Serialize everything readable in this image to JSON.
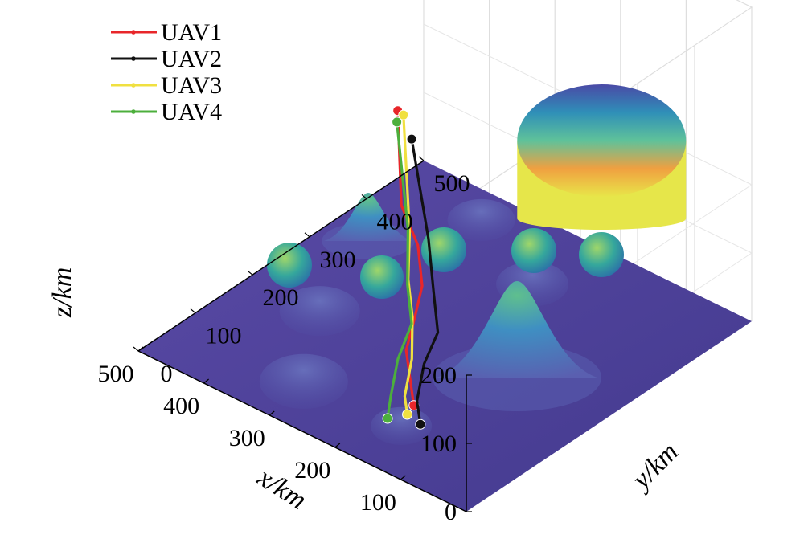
{
  "chart_data": {
    "type": "line",
    "projection": "3d",
    "title": "",
    "xlabel": "x/km",
    "ylabel": "y/km",
    "zlabel": "z/km",
    "xlim": [
      0,
      500
    ],
    "ylim": [
      0,
      500
    ],
    "zlim": [
      0,
      200
    ],
    "grid": true,
    "legend_position": "top-left",
    "x_ticks": [
      "100",
      "200",
      "300",
      "400",
      "500"
    ],
    "y_ticks": [
      "0",
      "100",
      "200",
      "300",
      "400",
      "500"
    ],
    "z_ticks": [
      "0",
      "100",
      "200"
    ],
    "series": [
      {
        "name": "UAV1",
        "color": "#e8262a",
        "points": [
          [
            80,
            0,
            118
          ],
          [
            110,
            30,
            114
          ],
          [
            170,
            90,
            106
          ],
          [
            210,
            150,
            98
          ],
          [
            250,
            210,
            96
          ],
          [
            300,
            260,
            104
          ],
          [
            360,
            300,
            112
          ],
          [
            470,
            420,
            132
          ]
        ]
      },
      {
        "name": "UAV2",
        "color": "#111111",
        "points": [
          [
            70,
            0,
            95
          ],
          [
            110,
            40,
            88
          ],
          [
            160,
            110,
            80
          ],
          [
            200,
            180,
            68
          ],
          [
            250,
            230,
            76
          ],
          [
            310,
            290,
            92
          ],
          [
            440,
            410,
            110
          ]
        ]
      },
      {
        "name": "UAV3",
        "color": "#f0e040",
        "points": [
          [
            90,
            0,
            100
          ],
          [
            120,
            30,
            96
          ],
          [
            170,
            100,
            88
          ],
          [
            230,
            170,
            82
          ],
          [
            280,
            220,
            86
          ],
          [
            330,
            280,
            98
          ],
          [
            470,
            430,
            120
          ]
        ]
      },
      {
        "name": "UAV4",
        "color": "#4caf3c",
        "points": [
          [
            120,
            0,
            80
          ],
          [
            150,
            40,
            76
          ],
          [
            200,
            110,
            68
          ],
          [
            240,
            180,
            62
          ],
          [
            290,
            230,
            68
          ],
          [
            350,
            300,
            82
          ],
          [
            480,
            430,
            105
          ]
        ]
      }
    ],
    "colors": {
      "ground": "#4b3f96",
      "cylinder": "#e7e64a",
      "sphere": "#3aa59a",
      "peak": "#4a8cc4"
    }
  }
}
